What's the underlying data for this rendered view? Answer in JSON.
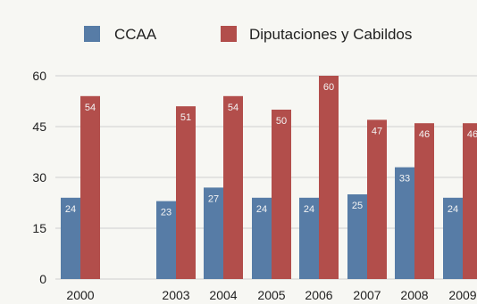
{
  "chart_data": {
    "type": "bar",
    "categories": [
      "2000",
      "2003",
      "2004",
      "2005",
      "2006",
      "2007",
      "2008",
      "2009"
    ],
    "series": [
      {
        "name": "CCAA",
        "values": [
          24,
          23,
          27,
          24,
          24,
          25,
          33,
          24
        ],
        "color": "#577ca6"
      },
      {
        "name": "Diputaciones y Cabildos",
        "values": [
          54,
          51,
          54,
          50,
          60,
          47,
          46,
          46
        ],
        "color": "#b24e4b"
      }
    ],
    "yticks": [
      "0",
      "15",
      "30",
      "45",
      "60"
    ],
    "ylim": [
      0,
      60
    ],
    "grid": true,
    "legend_position": "top"
  }
}
